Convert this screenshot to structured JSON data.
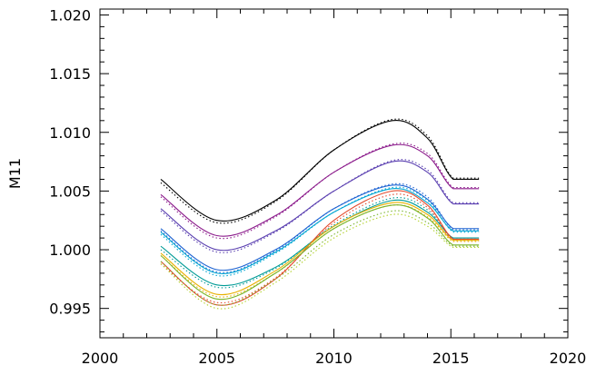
{
  "chart_data": {
    "type": "line",
    "title": "",
    "xlabel": "",
    "ylabel": "M11",
    "xlim": [
      2000,
      2020
    ],
    "ylim": [
      0.9925,
      1.0205
    ],
    "xticks": [
      2000,
      2005,
      2010,
      2015,
      2020
    ],
    "xtick_labels": [
      "2000",
      "2005",
      "2010",
      "2015",
      "2020"
    ],
    "yticks": [
      0.995,
      1.0,
      1.005,
      1.01,
      1.015,
      1.02
    ],
    "ytick_labels": [
      "0.995",
      "1.000",
      "1.005",
      "1.010",
      "1.015",
      "1.020"
    ],
    "grid": false,
    "x": [
      2002.6,
      2005.0,
      2007.5,
      2010.0,
      2012.5,
      2014.0,
      2015.1,
      2016.2
    ],
    "series": [
      {
        "color": "#000000",
        "style": "solid",
        "values": [
          1.006,
          1.0025,
          1.0042,
          1.0085,
          1.011,
          1.0095,
          1.006,
          1.006
        ]
      },
      {
        "color": "#000000",
        "style": "dotted",
        "values": [
          1.0057,
          1.0023,
          1.0041,
          1.0085,
          1.0111,
          1.0097,
          1.0061,
          1.0061
        ]
      },
      {
        "color": "#8B1A8B",
        "style": "solid",
        "values": [
          1.0047,
          1.0012,
          1.0029,
          1.0066,
          1.0089,
          1.008,
          1.0052,
          1.0052
        ]
      },
      {
        "color": "#8B1A8B",
        "style": "dotted",
        "values": [
          1.0045,
          1.001,
          1.0028,
          1.0066,
          1.009,
          1.0082,
          1.0053,
          1.0053
        ]
      },
      {
        "color": "#5A3FB0",
        "style": "solid",
        "values": [
          1.0035,
          1.0,
          1.0016,
          1.005,
          1.0075,
          1.0066,
          1.0039,
          1.0039
        ]
      },
      {
        "color": "#5A3FB0",
        "style": "dotted",
        "values": [
          1.0033,
          0.9998,
          1.0015,
          1.005,
          1.0076,
          1.0068,
          1.004,
          1.004
        ]
      },
      {
        "color": "#1E64D2",
        "style": "solid",
        "values": [
          1.0018,
          0.9983,
          1.0,
          1.0035,
          1.0055,
          1.0043,
          1.0018,
          1.0018
        ]
      },
      {
        "color": "#1E64D2",
        "style": "dotted",
        "values": [
          1.0016,
          0.9981,
          0.9999,
          1.0035,
          1.0056,
          1.0045,
          1.0017,
          1.0017
        ]
      },
      {
        "color": "#00A5D2",
        "style": "solid",
        "values": [
          1.0015,
          0.998,
          0.9998,
          1.0032,
          1.0052,
          1.004,
          1.0016,
          1.0016
        ]
      },
      {
        "color": "#00A5D2",
        "style": "dotted",
        "values": [
          1.0013,
          0.9978,
          0.9997,
          1.0032,
          1.0053,
          1.0042,
          1.0015,
          1.0015
        ]
      },
      {
        "color": "#009B96",
        "style": "solid",
        "values": [
          1.0003,
          0.997,
          0.9985,
          1.002,
          1.0042,
          1.0032,
          1.001,
          1.001
        ]
      },
      {
        "color": "#009B96",
        "style": "dotted",
        "values": [
          1.0,
          0.9968,
          0.9984,
          1.0021,
          1.0044,
          1.0034,
          1.0009,
          1.0009
        ]
      },
      {
        "color": "#E34A2C",
        "style": "solid",
        "values": [
          0.999,
          0.9953,
          0.9975,
          1.0025,
          1.005,
          1.0038,
          1.0009,
          1.0009
        ]
      },
      {
        "color": "#E34A2C",
        "style": "dotted",
        "values": [
          0.9988,
          0.9955,
          0.9976,
          1.0023,
          1.0047,
          1.0036,
          1.0008,
          1.0008
        ]
      },
      {
        "color": "#E8B000",
        "style": "solid",
        "values": [
          0.9997,
          0.9962,
          0.9982,
          1.002,
          1.004,
          1.003,
          1.0008,
          1.0008
        ]
      },
      {
        "color": "#E8B000",
        "style": "dotted",
        "values": [
          0.9995,
          0.996,
          0.998,
          1.0018,
          1.0038,
          1.0028,
          1.0007,
          1.0007
        ]
      },
      {
        "color": "#78B428",
        "style": "solid",
        "values": [
          0.9995,
          0.9958,
          0.998,
          1.0018,
          1.0038,
          1.0027,
          1.0004,
          1.0004
        ]
      },
      {
        "color": "#78B428",
        "style": "dotted",
        "values": [
          0.999,
          0.9953,
          0.9975,
          1.0013,
          1.0033,
          1.0023,
          1.0003,
          1.0003
        ]
      },
      {
        "color": "#B4D22D",
        "style": "dotted",
        "values": [
          0.9988,
          0.995,
          0.9972,
          1.001,
          1.003,
          1.002,
          1.0002,
          1.0002
        ]
      }
    ]
  }
}
